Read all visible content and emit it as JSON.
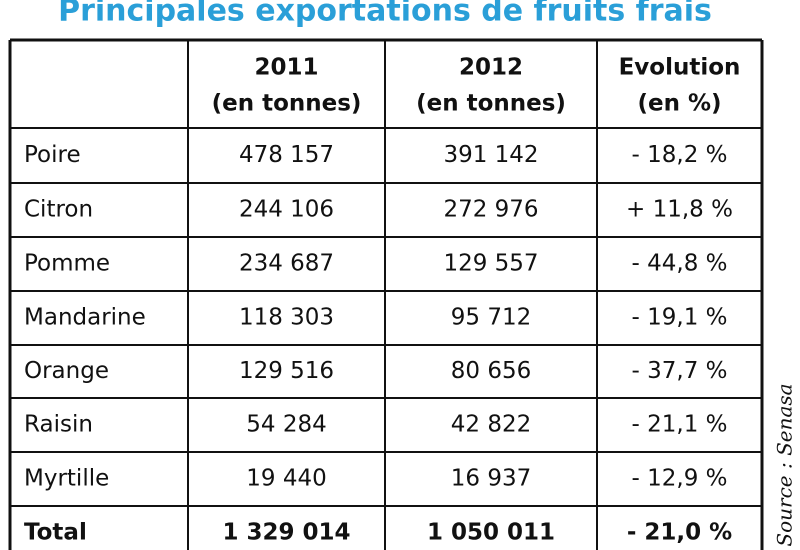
{
  "title": "Principales exportations de fruits frais",
  "table": {
    "header": [
      [],
      [
        "2011",
        "(en tonnes)"
      ],
      [
        "2012",
        "(en tonnes)"
      ],
      [
        "Evolution",
        "(en %)"
      ]
    ],
    "rows": [
      [
        "Poire",
        "478 157",
        "391 142",
        "- 18,2 %"
      ],
      [
        "Citron",
        "244 106",
        "272 976",
        "+ 11,8 %"
      ],
      [
        "Pomme",
        "234 687",
        "129 557",
        "- 44,8 %"
      ],
      [
        "Mandarine",
        "118 303",
        "95 712",
        "- 19,1 %"
      ],
      [
        "Orange",
        "129 516",
        "80 656",
        "- 37,7 %"
      ],
      [
        "Raisin",
        "54 284",
        "42 822",
        "- 21,1 %"
      ],
      [
        "Myrtille",
        "19 440",
        "16 937",
        "- 12,9 %"
      ]
    ],
    "total": [
      "Total",
      "1 329 014",
      "1 050 011",
      "- 21,0 %"
    ]
  },
  "source": "Source : Senasa"
}
